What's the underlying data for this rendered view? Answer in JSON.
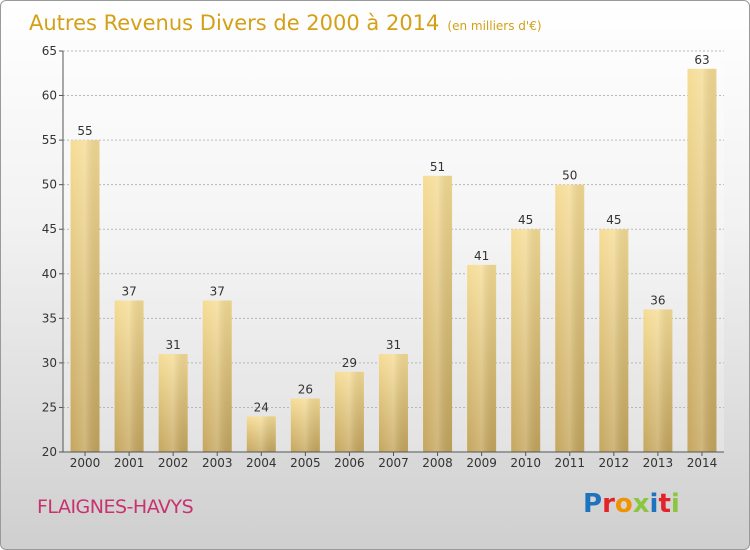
{
  "title": "Autres Revenus Divers de 2000 à 2014",
  "unit_label": "(en milliers d'€)",
  "location": "FLAIGNES-HAVYS",
  "logo": {
    "text": "Proxiti",
    "colors": [
      "#1e73be",
      "#e2232a",
      "#f39200",
      "#8cc63f",
      "#1e73be",
      "#e2232a",
      "#8cc63f"
    ]
  },
  "colors": {
    "bar_light": "#f4dc98",
    "bar_dark": "#c8a961",
    "title": "#d4a017",
    "location": "#c8326e"
  },
  "chart_data": {
    "type": "bar",
    "categories": [
      "2000",
      "2001",
      "2002",
      "2003",
      "2004",
      "2005",
      "2006",
      "2007",
      "2008",
      "2009",
      "2010",
      "2011",
      "2012",
      "2013",
      "2014"
    ],
    "values": [
      55,
      37,
      31,
      37,
      24,
      26,
      29,
      31,
      51,
      41,
      45,
      50,
      45,
      36,
      63
    ],
    "title": "Autres Revenus Divers de 2000 à 2014",
    "ylim": [
      20,
      65
    ],
    "yticks": [
      20,
      25,
      30,
      35,
      40,
      45,
      50,
      55,
      60,
      65
    ],
    "grid": true,
    "data_labels": true
  }
}
